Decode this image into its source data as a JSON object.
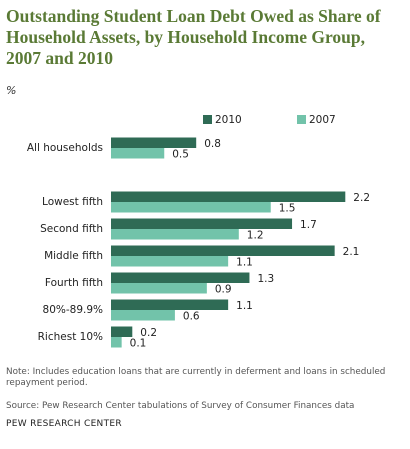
{
  "chart_data": {
    "type": "bar",
    "orientation": "horizontal",
    "title": "Outstanding Student Loan Debt Owed as Share of Household Assets, by Household Income Group, 2007 and 2010",
    "subtitle": "%",
    "categories": [
      "All households",
      "Lowest fifth",
      "Second fifth",
      "Middle fifth",
      "Fourth fifth",
      "80%-89.9%",
      "Richest 10%"
    ],
    "series": [
      {
        "name": "2010",
        "color": "#2f6b55",
        "values": [
          0.8,
          2.2,
          1.7,
          2.1,
          1.3,
          1.1,
          0.2
        ]
      },
      {
        "name": "2007",
        "color": "#72c3aa",
        "values": [
          0.5,
          1.5,
          1.2,
          1.1,
          0.9,
          0.6,
          0.1
        ]
      }
    ],
    "notes": [
      "Note: Includes education loans that are currently in deferment and loans in scheduled repayment period.",
      "Source: Pew Research Center tabulations of Survey of Consumer Finances data"
    ],
    "credit": "PEW RESEARCH CENTER"
  }
}
